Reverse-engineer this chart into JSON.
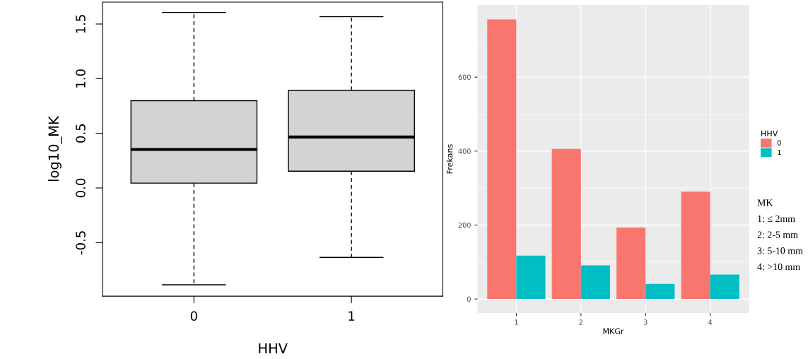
{
  "chart_data": [
    {
      "type": "box",
      "xlabel": "HHV",
      "ylabel": "log10_MK",
      "categories": [
        "0",
        "1"
      ],
      "boxes": [
        {
          "low": -0.886,
          "q1": 0.044,
          "median": 0.352,
          "q3": 0.798,
          "high": 1.606
        },
        {
          "low": -0.635,
          "q1": 0.153,
          "median": 0.466,
          "q3": 0.894,
          "high": 1.567
        }
      ],
      "color": "#d3d3d3",
      "ylim": [
        -0.99,
        1.7
      ],
      "yticks": [
        {
          "value": -0.5,
          "label": "-0.5"
        },
        {
          "value": 0,
          "label": "0.0"
        },
        {
          "value": 0.5,
          "label": "0.5"
        },
        {
          "value": 1,
          "label": "1.0"
        },
        {
          "value": 1.5,
          "label": "1.5"
        }
      ],
      "grid": false
    },
    {
      "type": "bar",
      "xlabel": "MKGr",
      "ylabel": "Frekans",
      "legend_title": "HHV",
      "legend": "right",
      "categories": [
        "1",
        "2",
        "3",
        "4"
      ],
      "series": [
        {
          "name": "0",
          "color": "#f8766d",
          "values": [
            756,
            406,
            193,
            290
          ]
        },
        {
          "name": "1",
          "color": "#00bfc4",
          "values": [
            117,
            91,
            41,
            66
          ]
        }
      ],
      "ylim": [
        -38,
        795
      ],
      "yticks": [
        0,
        200,
        400,
        600
      ],
      "grid": true,
      "annotations": [
        "MK",
        "1: ≤ 2mm",
        "2: 2-5 mm",
        "3: 5-10 mm",
        "4: >10 mm"
      ]
    }
  ]
}
